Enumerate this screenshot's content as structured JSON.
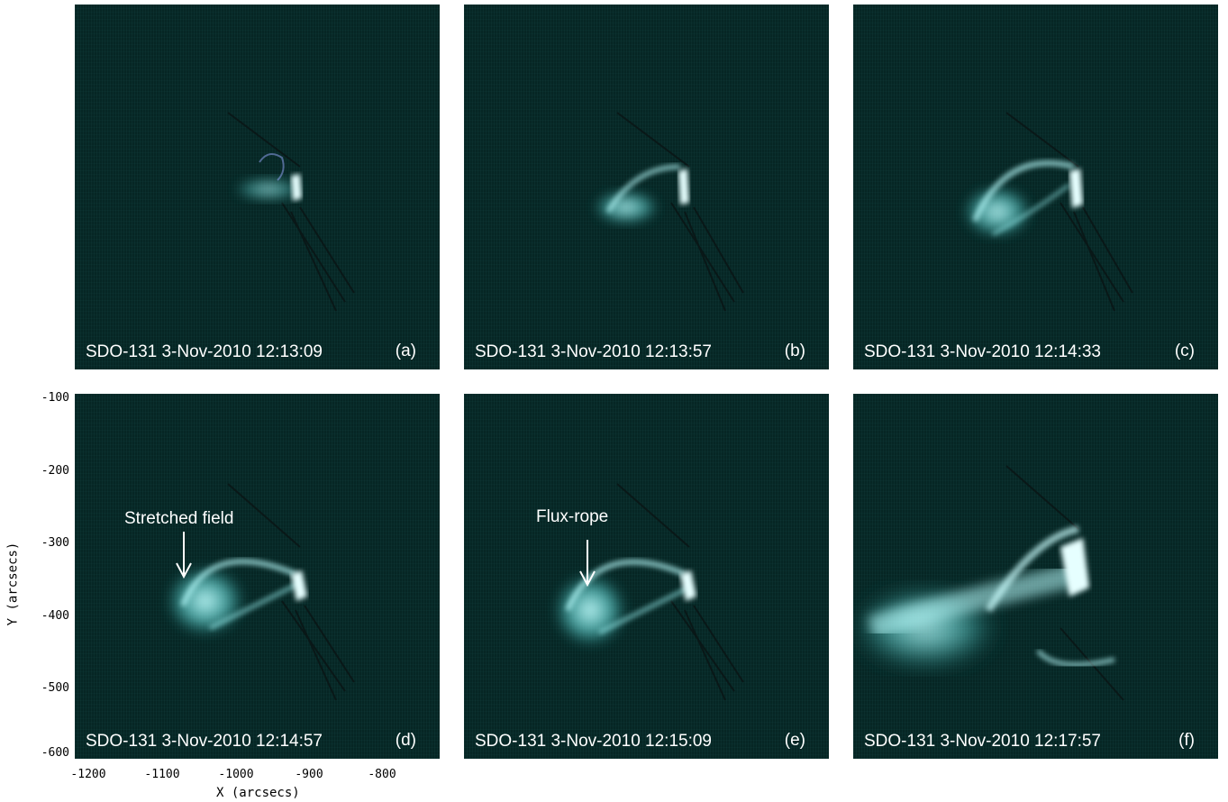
{
  "panels": [
    {
      "caption": "SDO-131  3-Nov-2010 12:13:09",
      "letter": "(a)"
    },
    {
      "caption": "SDO-131  3-Nov-2010 12:13:57",
      "letter": "(b)"
    },
    {
      "caption": "SDO-131  3-Nov-2010 12:14:33",
      "letter": "(c)"
    },
    {
      "caption": "SDO-131  3-Nov-2010 12:14:57",
      "letter": "(d)",
      "annotation": "Stretched field"
    },
    {
      "caption": "SDO-131  3-Nov-2010 12:15:09",
      "letter": "(e)",
      "annotation": "Flux-rope"
    },
    {
      "caption": "SDO-131  3-Nov-2010 12:17:57",
      "letter": "(f)"
    }
  ],
  "axes": {
    "ylabel": "Y (arcsecs)",
    "xlabel": "X (arcsecs)",
    "yticks": [
      "-100",
      "-200",
      "-300",
      "-400",
      "-500",
      "-600"
    ],
    "xticks": [
      "-1200",
      "-1100",
      "-1000",
      "-900",
      "-800"
    ]
  },
  "colors": {
    "background": "#062624",
    "plasma": "#7ff2f0"
  }
}
